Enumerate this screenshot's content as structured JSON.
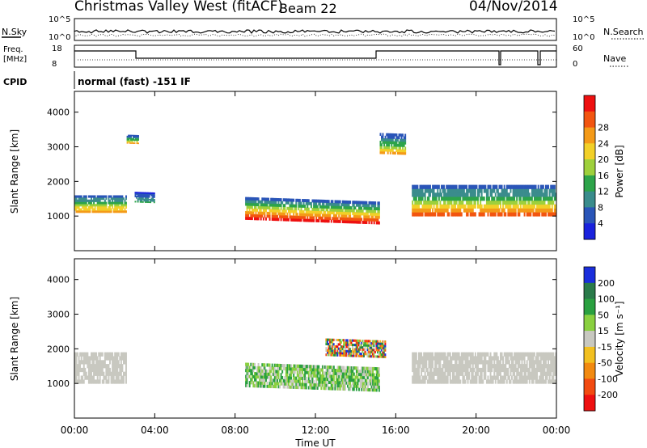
{
  "header": {
    "station": "Christmas Valley West (fitACF)",
    "beam": "Beam 22",
    "date": "04/Nov/2014"
  },
  "status_panels": {
    "nsky_label": "N.Sky",
    "nsearch_label": "N.Search",
    "freq_label_1": "Freq.",
    "freq_label_2": "[MHz]",
    "nave_label": "Nave",
    "cpid_label": "CPID",
    "cpid_text": "normal (fast) -151 IF",
    "noise_ticks": [
      "10^5",
      "10^0"
    ],
    "freq_ticks": [
      "18",
      "8"
    ],
    "nave_ticks": [
      "60",
      "0"
    ]
  },
  "chart_data": [
    {
      "type": "heatmap",
      "title": "",
      "xlabel": "Time UT",
      "ylabel": "Slant Range [km]",
      "x_ticks": [
        "00:00",
        "04:00",
        "08:00",
        "12:00",
        "16:00",
        "20:00",
        "00:00"
      ],
      "x_range_hours": [
        0,
        24
      ],
      "ylim": [
        0,
        4600
      ],
      "y_ticks": [
        1000,
        2000,
        3000,
        4000
      ],
      "colorbar": {
        "label": "Power [dB]",
        "ticks": [
          "4",
          "8",
          "12",
          "16",
          "20",
          "24",
          "28"
        ],
        "levels": [
          0,
          4,
          8,
          12,
          16,
          20,
          24,
          28,
          32
        ],
        "colors": [
          "#1a22dd",
          "#2a55b8",
          "#3a8c8c",
          "#2da44a",
          "#9ed03c",
          "#f2d028",
          "#f49a18",
          "#f25510",
          "#ee1010"
        ]
      },
      "regions": [
        {
          "t": [
            0.0,
            2.6
          ],
          "r_base": 1100,
          "thickness": 500,
          "peak_db": 24
        },
        {
          "t": [
            2.6,
            3.2
          ],
          "r_base": 3100,
          "thickness": 250,
          "peak_db": 22
        },
        {
          "t": [
            3.0,
            4.0
          ],
          "r_base": 1400,
          "thickness": 300,
          "peak_db": 10
        },
        {
          "t": [
            8.5,
            15.2
          ],
          "r_base": 900,
          "thickness": 650,
          "peak_db": 30
        },
        {
          "t": [
            15.2,
            16.5
          ],
          "r_base": 2800,
          "thickness": 600,
          "peak_db": 22
        },
        {
          "t": [
            16.8,
            24.0
          ],
          "r_base": 1000,
          "thickness": 900,
          "peak_db": 26
        }
      ]
    },
    {
      "type": "heatmap",
      "title": "",
      "xlabel": "Time UT",
      "ylabel": "Slant Range [km]",
      "x_ticks": [
        "00:00",
        "04:00",
        "08:00",
        "12:00",
        "16:00",
        "20:00",
        "00:00"
      ],
      "x_range_hours": [
        0,
        24
      ],
      "ylim": [
        0,
        4600
      ],
      "y_ticks": [
        1000,
        2000,
        3000,
        4000
      ],
      "colorbar": {
        "label": "Velocity [m s⁻¹]",
        "ticks": [
          "200",
          "100",
          "50",
          "15",
          "-15",
          "-50",
          "-100",
          "-200"
        ],
        "colors": [
          "#1a2edc",
          "#2a7a4a",
          "#2aa040",
          "#8ad040",
          "#c8c8c0",
          "#f2c020",
          "#f28a10",
          "#f24a10",
          "#ee1010"
        ]
      },
      "regions": [
        {
          "t": [
            0.0,
            2.6
          ],
          "r_base": 1000,
          "thickness": 900,
          "velocity": "-15 to 15"
        },
        {
          "t": [
            8.5,
            15.2
          ],
          "r_base": 900,
          "thickness": 700,
          "velocity": "15 to 100"
        },
        {
          "t": [
            12.5,
            15.5
          ],
          "r_base": 1800,
          "thickness": 500,
          "velocity": "-200 to 200"
        },
        {
          "t": [
            16.8,
            24.0
          ],
          "r_base": 1000,
          "thickness": 900,
          "velocity": "-15 to 15"
        }
      ]
    }
  ]
}
